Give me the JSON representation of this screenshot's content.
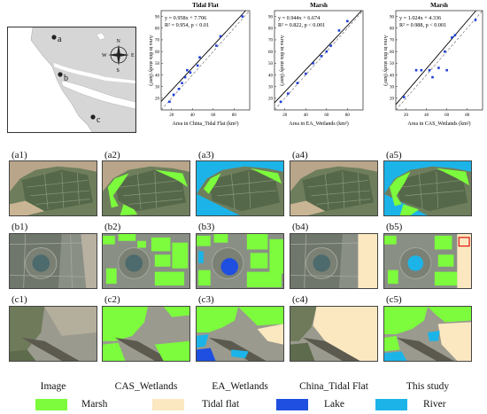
{
  "map": {
    "labels": [
      "a",
      "b",
      "c"
    ],
    "compass": [
      "N",
      "S",
      "W",
      "E"
    ]
  },
  "colors": {
    "marsh": "#7cfc3c",
    "tidal_flat": "#fbe8c0",
    "lake": "#1f4fe0",
    "river": "#1cb4e8",
    "fit_line": "#000000",
    "one_to_one": "#777777",
    "points": "#1f3fd6"
  },
  "chart_data": [
    {
      "type": "scatter",
      "title": "Tidal Flat",
      "xlabel": "Area in China_Tidal Flat (km²)",
      "ylabel": "Area in this study (km²)",
      "equation": "y = 0.958x + 7.706",
      "stats": "R² = 0.954, p < 0.01",
      "fit": {
        "slope": 0.958,
        "intercept": 7.706
      },
      "xlim": [
        10,
        95
      ],
      "ylim": [
        10,
        95
      ],
      "xticks": [
        20,
        40,
        60,
        80
      ],
      "yticks": [
        20,
        30,
        40,
        50,
        60,
        70,
        80,
        90
      ],
      "points": [
        [
          18,
          17
        ],
        [
          22,
          23
        ],
        [
          27,
          28
        ],
        [
          30,
          33
        ],
        [
          33,
          38
        ],
        [
          35,
          44
        ],
        [
          38,
          42
        ],
        [
          45,
          48
        ],
        [
          47,
          55
        ],
        [
          63,
          65
        ],
        [
          67,
          73
        ],
        [
          88,
          90
        ]
      ]
    },
    {
      "type": "scatter",
      "title": "Marsh",
      "xlabel": "Area in EA_Wetlands (km²)",
      "ylabel": "Area in this study (km²)",
      "equation": "y = 0.944x + 6.674",
      "stats": "R² = 0.822, p < 0.001",
      "fit": {
        "slope": 0.944,
        "intercept": 6.674
      },
      "xlim": [
        10,
        95
      ],
      "ylim": [
        10,
        95
      ],
      "xticks": [
        20,
        40,
        60,
        80
      ],
      "yticks": [
        20,
        30,
        40,
        50,
        60,
        70,
        80,
        90
      ],
      "points": [
        [
          16,
          17
        ],
        [
          23,
          24
        ],
        [
          32,
          33
        ],
        [
          40,
          41
        ],
        [
          47,
          50
        ],
        [
          55,
          56
        ],
        [
          60,
          60
        ],
        [
          64,
          65
        ],
        [
          72,
          78
        ],
        [
          80,
          86
        ]
      ]
    },
    {
      "type": "scatter",
      "title": "Marsh",
      "xlabel": "Area in CAS_Wetlands (km²)",
      "ylabel": "Area in this study (km²)",
      "equation": "y = 1.024x + 4.336",
      "stats": "R² = 0.988, p < 0.001",
      "fit": {
        "slope": 1.024,
        "intercept": 4.336
      },
      "xlim": [
        10,
        95
      ],
      "ylim": [
        10,
        95
      ],
      "xticks": [
        20,
        40,
        60,
        80
      ],
      "yticks": [
        20,
        30,
        40,
        50,
        60,
        70,
        80,
        90
      ],
      "points": [
        [
          18,
          21
        ],
        [
          30,
          44
        ],
        [
          35,
          44
        ],
        [
          43,
          44
        ],
        [
          46,
          38
        ],
        [
          52,
          46
        ],
        [
          60,
          44
        ],
        [
          58,
          60
        ],
        [
          65,
          72
        ],
        [
          68,
          74
        ],
        [
          88,
          87
        ]
      ]
    }
  ],
  "panels": {
    "row_a": [
      "(a1)",
      "(a2)",
      "(a3)",
      "(a4)",
      "(a5)"
    ],
    "row_b": [
      "(b1)",
      "(b2)",
      "(b3)",
      "(b4)",
      "(b5)"
    ],
    "row_c": [
      "(c1)",
      "(c2)",
      "(c3)",
      "(c4)",
      "(c5)"
    ]
  },
  "columns": [
    "Image",
    "CAS_Wetlands",
    "EA_Wetlands",
    "China_Tidal Flat",
    "This study"
  ],
  "legend": [
    {
      "label": "Marsh",
      "color": "#7cfc3c"
    },
    {
      "label": "Tidal flat",
      "color": "#fbe8c0"
    },
    {
      "label": "Lake",
      "color": "#1f4fe0"
    },
    {
      "label": "River",
      "color": "#1cb4e8"
    }
  ]
}
